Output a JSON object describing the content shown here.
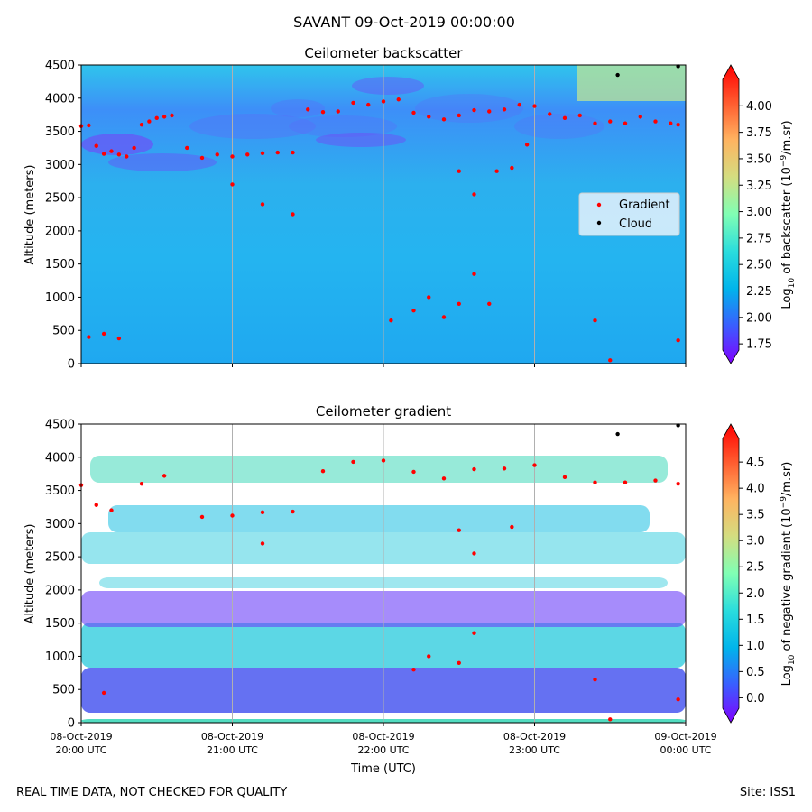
{
  "figure": {
    "suptitle": "SAVANT 09-Oct-2019 00:00:00",
    "footer_left": "REAL TIME DATA, NOT CHECKED FOR QUALITY",
    "footer_right": "Site: ISS1"
  },
  "colors": {
    "gradient_marker": "#ff0000",
    "cloud_marker": "#000000",
    "colormap": [
      "#8000ff",
      "#3b5cff",
      "#00b4eb",
      "#2adddd",
      "#80ffb4",
      "#d4dd80",
      "#ffb360",
      "#ff5a2e",
      "#ff0000"
    ]
  },
  "chart_data": [
    {
      "type": "heatmap",
      "title": "Ceilometer backscatter",
      "xlabel": "",
      "ylabel": "Altitude (meters)",
      "ylim": [
        0,
        4500
      ],
      "yticks": [
        "0",
        "500",
        "1000",
        "1500",
        "2000",
        "2500",
        "3000",
        "3500",
        "4000",
        "4500"
      ],
      "x_range_utc": [
        "2019-10-08 20:00",
        "2019-10-09 00:00"
      ],
      "grid": "vertical lines at hourly ticks",
      "colorbar": {
        "label_main": "Log",
        "label_sub": "10",
        "label_rest": " of backscatter (10",
        "label_sup": "−9",
        "label_end": "/m.sr)",
        "range": [
          1.7,
          4.25
        ],
        "ticks": [
          "1.75",
          "2.00",
          "2.25",
          "2.50",
          "2.75",
          "3.00",
          "3.25",
          "3.50",
          "3.75",
          "4.00"
        ],
        "extend": "both"
      },
      "legend": {
        "placement": "right",
        "entries": [
          {
            "label": "Gradient",
            "color": "#ff0000"
          },
          {
            "label": "Cloud",
            "color": "#000000"
          }
        ]
      },
      "series": [
        {
          "name": "Gradient",
          "points": [
            [
              0.0,
              3580
            ],
            [
              0.05,
              3590
            ],
            [
              0.1,
              3280
            ],
            [
              0.15,
              3160
            ],
            [
              0.2,
              3200
            ],
            [
              0.25,
              3150
            ],
            [
              0.3,
              3120
            ],
            [
              0.35,
              3250
            ],
            [
              0.4,
              3600
            ],
            [
              0.45,
              3650
            ],
            [
              0.5,
              3700
            ],
            [
              0.55,
              3720
            ],
            [
              0.6,
              3740
            ],
            [
              0.7,
              3250
            ],
            [
              0.8,
              3100
            ],
            [
              0.9,
              3150
            ],
            [
              1.0,
              3120
            ],
            [
              1.1,
              3150
            ],
            [
              1.2,
              3170
            ],
            [
              1.3,
              3180
            ],
            [
              1.4,
              3180
            ],
            [
              1.5,
              3830
            ],
            [
              1.6,
              3790
            ],
            [
              1.7,
              3800
            ],
            [
              1.8,
              3930
            ],
            [
              1.9,
              3900
            ],
            [
              2.0,
              3950
            ],
            [
              2.1,
              3980
            ],
            [
              2.2,
              3780
            ],
            [
              2.3,
              3720
            ],
            [
              2.4,
              3680
            ],
            [
              2.5,
              3740
            ],
            [
              2.6,
              3820
            ],
            [
              2.7,
              3800
            ],
            [
              2.8,
              3830
            ],
            [
              2.9,
              3900
            ],
            [
              3.0,
              3880
            ],
            [
              3.1,
              3760
            ],
            [
              3.2,
              3700
            ],
            [
              3.3,
              3740
            ],
            [
              3.4,
              3620
            ],
            [
              3.5,
              3650
            ],
            [
              3.6,
              3620
            ],
            [
              3.7,
              3720
            ],
            [
              3.8,
              3650
            ],
            [
              3.9,
              3620
            ],
            [
              3.95,
              3600
            ],
            [
              0.05,
              400
            ],
            [
              0.15,
              450
            ],
            [
              0.25,
              380
            ],
            [
              2.05,
              650
            ],
            [
              2.2,
              800
            ],
            [
              2.3,
              1000
            ],
            [
              2.4,
              700
            ],
            [
              2.5,
              900
            ],
            [
              2.6,
              1350
            ],
            [
              2.7,
              900
            ],
            [
              3.4,
              650
            ],
            [
              3.5,
              50
            ],
            [
              3.95,
              350
            ],
            [
              1.0,
              2700
            ],
            [
              1.2,
              2400
            ],
            [
              1.4,
              2250
            ],
            [
              2.5,
              2900
            ],
            [
              2.6,
              2550
            ],
            [
              2.75,
              2900
            ],
            [
              2.85,
              2950
            ],
            [
              2.95,
              3300
            ]
          ]
        },
        {
          "name": "Cloud",
          "points": [
            [
              3.55,
              4350
            ],
            [
              3.95,
              4480
            ]
          ]
        }
      ]
    },
    {
      "type": "heatmap",
      "title": "Ceilometer gradient",
      "xlabel": "Time (UTC)",
      "ylabel": "Altitude (meters)",
      "ylim": [
        0,
        4500
      ],
      "yticks": [
        "0",
        "500",
        "1000",
        "1500",
        "2000",
        "2500",
        "3000",
        "3500",
        "4000",
        "4500"
      ],
      "xtick_labels": [
        [
          "08-Oct-2019",
          "20:00 UTC"
        ],
        [
          "08-Oct-2019",
          "21:00 UTC"
        ],
        [
          "08-Oct-2019",
          "22:00 UTC"
        ],
        [
          "08-Oct-2019",
          "23:00 UTC"
        ],
        [
          "09-Oct-2019",
          "00:00 UTC"
        ]
      ],
      "grid": "vertical lines at hourly ticks",
      "colorbar": {
        "label_main": "Log",
        "label_sub": "10",
        "label_rest": " of negative gradient (10",
        "label_sup": "−9",
        "label_end": "/m.sr)",
        "range": [
          -0.2,
          4.95
        ],
        "ticks": [
          "0.0",
          "0.5",
          "1.0",
          "1.5",
          "2.0",
          "2.5",
          "3.0",
          "3.5",
          "4.0",
          "4.5"
        ],
        "extend": "both"
      },
      "series": [
        {
          "name": "Gradient",
          "points": [
            [
              0.0,
              3580
            ],
            [
              0.1,
              3280
            ],
            [
              0.2,
              3200
            ],
            [
              0.4,
              3600
            ],
            [
              0.55,
              3720
            ],
            [
              0.8,
              3100
            ],
            [
              1.0,
              3120
            ],
            [
              1.2,
              3170
            ],
            [
              1.4,
              3180
            ],
            [
              1.6,
              3790
            ],
            [
              1.8,
              3930
            ],
            [
              2.0,
              3950
            ],
            [
              2.2,
              3780
            ],
            [
              2.4,
              3680
            ],
            [
              2.6,
              3820
            ],
            [
              2.8,
              3830
            ],
            [
              3.0,
              3880
            ],
            [
              3.2,
              3700
            ],
            [
              3.4,
              3620
            ],
            [
              3.6,
              3620
            ],
            [
              3.8,
              3650
            ],
            [
              3.95,
              3600
            ],
            [
              0.15,
              450
            ],
            [
              2.2,
              800
            ],
            [
              2.3,
              1000
            ],
            [
              2.5,
              900
            ],
            [
              2.6,
              1350
            ],
            [
              3.4,
              650
            ],
            [
              3.5,
              50
            ],
            [
              3.95,
              350
            ],
            [
              1.2,
              2700
            ],
            [
              2.5,
              2900
            ],
            [
              2.6,
              2550
            ],
            [
              2.85,
              2950
            ]
          ]
        },
        {
          "name": "Cloud",
          "points": [
            [
              3.55,
              4350
            ],
            [
              3.95,
              4480
            ]
          ]
        }
      ]
    }
  ]
}
